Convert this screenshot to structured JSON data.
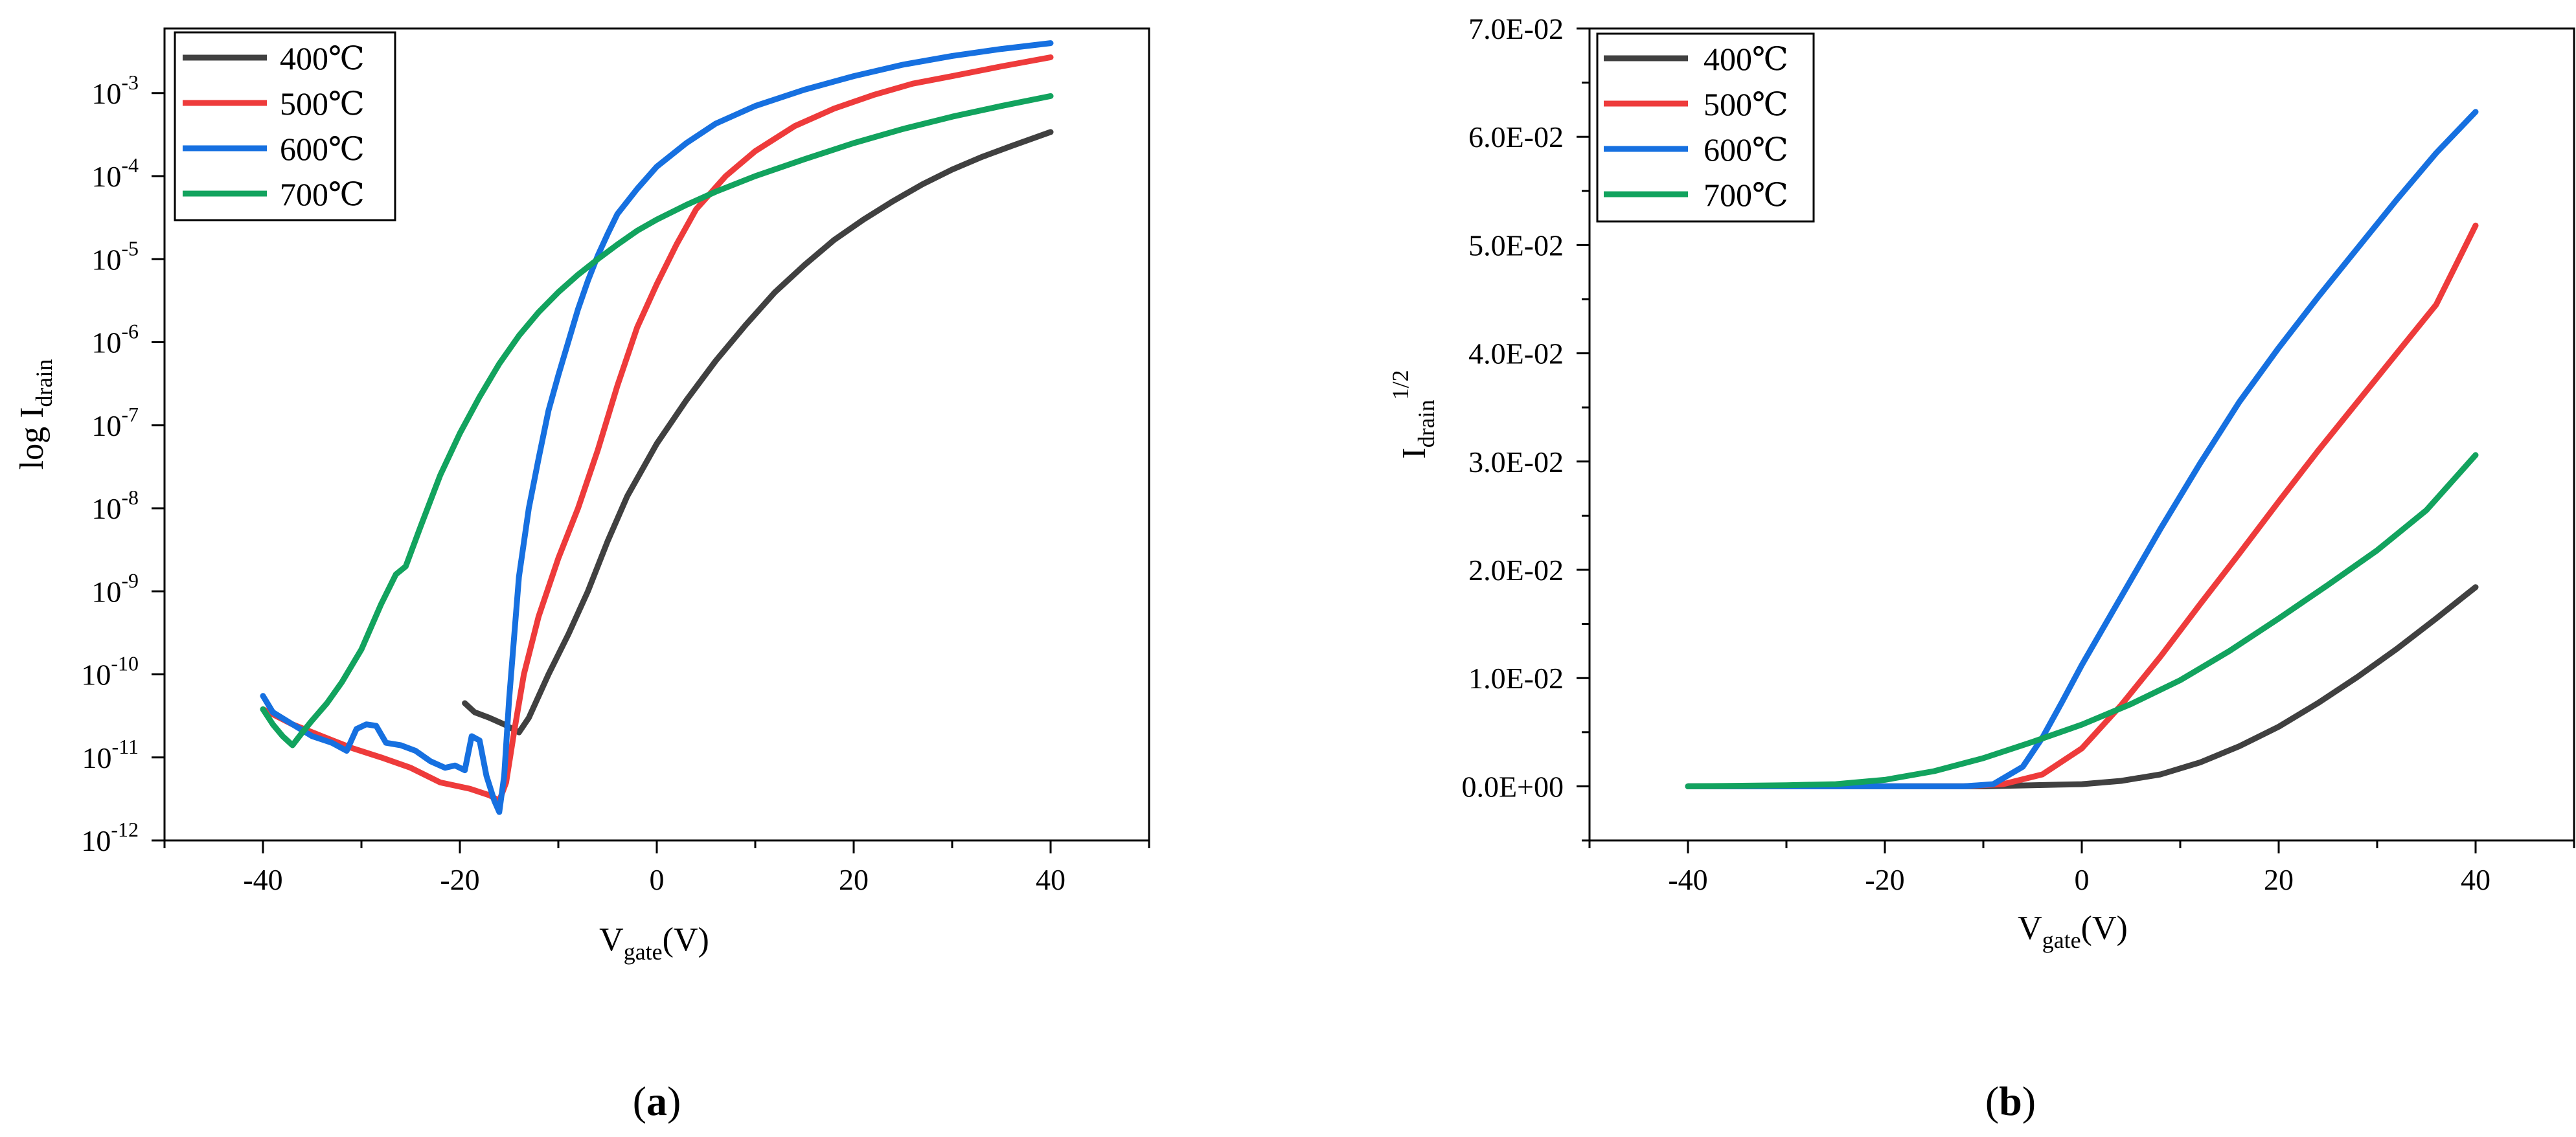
{
  "chart_data": [
    {
      "type": "line",
      "panel": "(a)",
      "panel_open": "(",
      "panel_letter": "a",
      "panel_close": ")",
      "yscale": "log",
      "xlabel": "V_gate(V)",
      "xlabel_main": "V",
      "xlabel_sub": "gate",
      "xlabel_unit": "(V)",
      "ylabel": "log I_drain",
      "ylabel_main": "log I",
      "ylabel_sub": "drain",
      "xlim": [
        -50,
        50
      ],
      "ylim": [
        1e-12,
        0.006
      ],
      "xticks": [
        "-40",
        "-20",
        "0",
        "20",
        "40"
      ],
      "xtick_values": [
        -40,
        -20,
        0,
        20,
        40
      ],
      "ytick_exponents": [
        -12,
        -11,
        -10,
        -9,
        -8,
        -7,
        -6,
        -5,
        -4,
        -3
      ],
      "ytick_base": "10",
      "ytick_labels": [
        "-12",
        "-11",
        "-10",
        "-9",
        "-8",
        "-7",
        "-6",
        "-5",
        "-4",
        "-3"
      ],
      "legend_position": "top-left",
      "series": [
        {
          "name": "400℃",
          "color": "#404040",
          "points": [
            [
              -19.5,
              4.5e-11
            ],
            [
              -18.5,
              3.5e-11
            ],
            [
              -17,
              3e-11
            ],
            [
              -15.5,
              2.5e-11
            ],
            [
              -14,
              2e-11
            ],
            [
              -13,
              3e-11
            ],
            [
              -11,
              1e-10
            ],
            [
              -9,
              3e-10
            ],
            [
              -7,
              1e-09
            ],
            [
              -5,
              4e-09
            ],
            [
              -3,
              1.4e-08
            ],
            [
              0,
              6e-08
            ],
            [
              3,
              2e-07
            ],
            [
              6,
              6e-07
            ],
            [
              9,
              1.6e-06
            ],
            [
              12,
              4e-06
            ],
            [
              15,
              8.5e-06
            ],
            [
              18,
              1.7e-05
            ],
            [
              21,
              3e-05
            ],
            [
              24,
              5e-05
            ],
            [
              27,
              8e-05
            ],
            [
              30,
              0.00012
            ],
            [
              33,
              0.00017
            ],
            [
              36,
              0.00023
            ],
            [
              40,
              0.00034
            ]
          ]
        },
        {
          "name": "500℃",
          "color": "#ee3b3b",
          "points": [
            [
              -40,
              3.8e-11
            ],
            [
              -37,
              2.5e-11
            ],
            [
              -34,
              1.8e-11
            ],
            [
              -31,
              1.3e-11
            ],
            [
              -28,
              1e-11
            ],
            [
              -25,
              7.5e-12
            ],
            [
              -22,
              5e-12
            ],
            [
              -19,
              4.2e-12
            ],
            [
              -17,
              3.5e-12
            ],
            [
              -16,
              3e-12
            ],
            [
              -15.3,
              5e-12
            ],
            [
              -14.5,
              2e-11
            ],
            [
              -13.5,
              1e-10
            ],
            [
              -12,
              5e-10
            ],
            [
              -10,
              2.5e-09
            ],
            [
              -8,
              1e-08
            ],
            [
              -6,
              5e-08
            ],
            [
              -4,
              3e-07
            ],
            [
              -2,
              1.5e-06
            ],
            [
              0,
              5e-06
            ],
            [
              2,
              1.5e-05
            ],
            [
              4,
              4e-05
            ],
            [
              7,
              0.0001
            ],
            [
              10,
              0.0002
            ],
            [
              14,
              0.0004
            ],
            [
              18,
              0.00065
            ],
            [
              22,
              0.00095
            ],
            [
              26,
              0.0013
            ],
            [
              30,
              0.0016
            ],
            [
              35,
              0.0021
            ],
            [
              40,
              0.0027
            ]
          ]
        },
        {
          "name": "600℃",
          "color": "#1670e0",
          "points": [
            [
              -40,
              5.5e-11
            ],
            [
              -39,
              3.5e-11
            ],
            [
              -37,
              2.5e-11
            ],
            [
              -35,
              1.8e-11
            ],
            [
              -33,
              1.5e-11
            ],
            [
              -31.5,
              1.2e-11
            ],
            [
              -30.5,
              2.2e-11
            ],
            [
              -29.5,
              2.5e-11
            ],
            [
              -28.5,
              2.4e-11
            ],
            [
              -27.5,
              1.5e-11
            ],
            [
              -26,
              1.4e-11
            ],
            [
              -24.5,
              1.2e-11
            ],
            [
              -23,
              9e-12
            ],
            [
              -21.5,
              7.5e-12
            ],
            [
              -20.5,
              8e-12
            ],
            [
              -19.5,
              7e-12
            ],
            [
              -18.8,
              1.8e-11
            ],
            [
              -18,
              1.6e-11
            ],
            [
              -17.3,
              6e-12
            ],
            [
              -16.5,
              3e-12
            ],
            [
              -16,
              2.2e-12
            ],
            [
              -15.5,
              6e-12
            ],
            [
              -15,
              5e-11
            ],
            [
              -14,
              1.5e-09
            ],
            [
              -13,
              1e-08
            ],
            [
              -12,
              4e-08
            ],
            [
              -11,
              1.5e-07
            ],
            [
              -10,
              4e-07
            ],
            [
              -9,
              1e-06
            ],
            [
              -8,
              2.5e-06
            ],
            [
              -7,
              5.5e-06
            ],
            [
              -6,
              1.1e-05
            ],
            [
              -5,
              2e-05
            ],
            [
              -4,
              3.5e-05
            ],
            [
              -2,
              7e-05
            ],
            [
              0,
              0.00013
            ],
            [
              3,
              0.00025
            ],
            [
              6,
              0.00043
            ],
            [
              10,
              0.0007
            ],
            [
              15,
              0.0011
            ],
            [
              20,
              0.0016
            ],
            [
              25,
              0.0022
            ],
            [
              30,
              0.0028
            ],
            [
              35,
              0.0034
            ],
            [
              40,
              0.004
            ]
          ]
        },
        {
          "name": "700℃",
          "color": "#12a35e",
          "points": [
            [
              -40,
              3.8e-11
            ],
            [
              -39,
              2.5e-11
            ],
            [
              -38,
              1.8e-11
            ],
            [
              -37,
              1.4e-11
            ],
            [
              -36,
              2e-11
            ],
            [
              -35,
              2.8e-11
            ],
            [
              -33.5,
              4.5e-11
            ],
            [
              -32,
              8e-11
            ],
            [
              -30,
              2e-10
            ],
            [
              -28,
              7e-10
            ],
            [
              -26.5,
              1.6e-09
            ],
            [
              -25.5,
              2e-09
            ],
            [
              -24,
              6e-09
            ],
            [
              -22,
              2.5e-08
            ],
            [
              -20,
              8e-08
            ],
            [
              -18,
              2.2e-07
            ],
            [
              -16,
              5.5e-07
            ],
            [
              -14,
              1.2e-06
            ],
            [
              -12,
              2.3e-06
            ],
            [
              -10,
              4e-06
            ],
            [
              -8,
              6.5e-06
            ],
            [
              -6,
              1e-05
            ],
            [
              -4,
              1.5e-05
            ],
            [
              -2,
              2.2e-05
            ],
            [
              0,
              3e-05
            ],
            [
              3,
              4.5e-05
            ],
            [
              6,
              6.5e-05
            ],
            [
              10,
              0.0001
            ],
            [
              15,
              0.00016
            ],
            [
              20,
              0.00025
            ],
            [
              25,
              0.00037
            ],
            [
              30,
              0.00052
            ],
            [
              35,
              0.0007
            ],
            [
              40,
              0.00092
            ]
          ]
        }
      ]
    },
    {
      "type": "line",
      "panel": "(b)",
      "panel_open": "(",
      "panel_letter": "b",
      "panel_close": ")",
      "yscale": "linear",
      "xlabel": "V_gate(V)",
      "xlabel_main": "V",
      "xlabel_sub": "gate",
      "xlabel_unit": "(V)",
      "ylabel": "I_drain^1/2",
      "ylabel_main": "I",
      "ylabel_sub": "drain",
      "ylabel_sup": "1/2",
      "xlim": [
        -50,
        50
      ],
      "ylim": [
        -0.005,
        0.07
      ],
      "xticks": [
        "-40",
        "-20",
        "0",
        "20",
        "40"
      ],
      "xtick_values": [
        -40,
        -20,
        0,
        20,
        40
      ],
      "yticks": [
        "0.0E+00",
        "1.0E-02",
        "2.0E-02",
        "3.0E-02",
        "4.0E-02",
        "5.0E-02",
        "6.0E-02",
        "7.0E-02"
      ],
      "ytick_values": [
        0,
        0.01,
        0.02,
        0.03,
        0.04,
        0.05,
        0.06,
        0.07
      ],
      "legend_position": "top-left",
      "series": [
        {
          "name": "400℃",
          "color": "#404040",
          "points": [
            [
              -40,
              0
            ],
            [
              -20,
              0
            ],
            [
              -10,
              0
            ],
            [
              -5,
              0.0001
            ],
            [
              0,
              0.0002
            ],
            [
              4,
              0.0005
            ],
            [
              8,
              0.0011
            ],
            [
              12,
              0.0022
            ],
            [
              16,
              0.0037
            ],
            [
              20,
              0.0055
            ],
            [
              24,
              0.0077
            ],
            [
              28,
              0.0101
            ],
            [
              32,
              0.0127
            ],
            [
              36,
              0.0155
            ],
            [
              40,
              0.0184
            ]
          ]
        },
        {
          "name": "500℃",
          "color": "#ee3b3b",
          "points": [
            [
              -40,
              0
            ],
            [
              -20,
              0
            ],
            [
              -12,
              0
            ],
            [
              -8,
              0.0002
            ],
            [
              -4,
              0.0011
            ],
            [
              0,
              0.0035
            ],
            [
              4,
              0.0075
            ],
            [
              8,
              0.012
            ],
            [
              12,
              0.0168
            ],
            [
              16,
              0.0215
            ],
            [
              20,
              0.0263
            ],
            [
              24,
              0.031
            ],
            [
              28,
              0.0355
            ],
            [
              32,
              0.04
            ],
            [
              36,
              0.0445
            ],
            [
              40,
              0.0518
            ]
          ]
        },
        {
          "name": "600℃",
          "color": "#1670e0",
          "points": [
            [
              -40,
              0
            ],
            [
              -20,
              0
            ],
            [
              -12,
              0
            ],
            [
              -9,
              0.0002
            ],
            [
              -6,
              0.0018
            ],
            [
              -4,
              0.0045
            ],
            [
              -2,
              0.0078
            ],
            [
              0,
              0.0112
            ],
            [
              4,
              0.0175
            ],
            [
              8,
              0.0238
            ],
            [
              12,
              0.0298
            ],
            [
              16,
              0.0355
            ],
            [
              20,
              0.0405
            ],
            [
              24,
              0.0452
            ],
            [
              28,
              0.0497
            ],
            [
              32,
              0.0542
            ],
            [
              36,
              0.0585
            ],
            [
              40,
              0.0623
            ]
          ]
        },
        {
          "name": "700℃",
          "color": "#12a35e",
          "points": [
            [
              -40,
              0
            ],
            [
              -30,
              0.0001
            ],
            [
              -25,
              0.0002
            ],
            [
              -20,
              0.0006
            ],
            [
              -15,
              0.0014
            ],
            [
              -10,
              0.0026
            ],
            [
              -5,
              0.0041
            ],
            [
              0,
              0.0057
            ],
            [
              5,
              0.0076
            ],
            [
              10,
              0.0098
            ],
            [
              15,
              0.0125
            ],
            [
              20,
              0.0155
            ],
            [
              25,
              0.0186
            ],
            [
              30,
              0.0218
            ],
            [
              35,
              0.0255
            ],
            [
              40,
              0.0306
            ]
          ]
        }
      ]
    }
  ]
}
